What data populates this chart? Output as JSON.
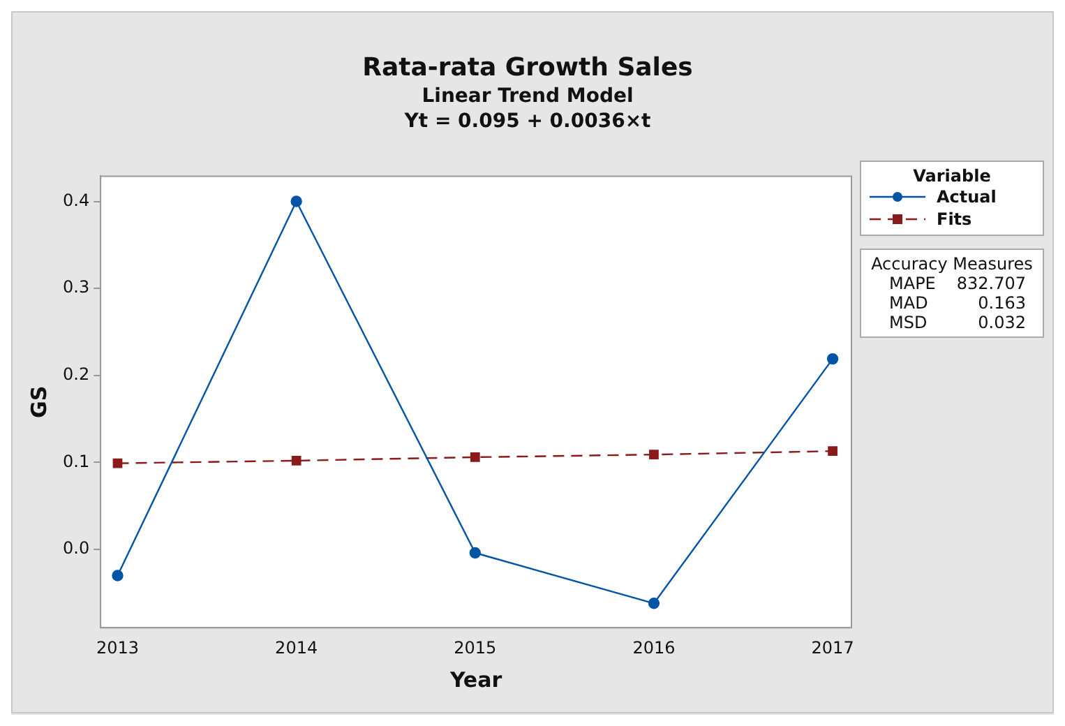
{
  "chart_data": {
    "type": "line",
    "title": "Rata-rata Growth Sales",
    "subtitle": "Linear Trend Model",
    "xlabel": "Year",
    "ylabel": "GS",
    "legend_title": "Variable",
    "x": [
      2013,
      2014,
      2015,
      2016,
      2017
    ],
    "series": [
      {
        "name": "Actual",
        "color": "#0054a6",
        "values": [
          -0.03,
          0.4,
          -0.004,
          -0.062,
          0.219
        ],
        "marker": "circle",
        "line_style": "solid"
      },
      {
        "name": "Fits",
        "color": "#8b1a1a",
        "values": [
          0.099,
          0.102,
          0.106,
          0.109,
          0.113
        ],
        "marker": "square",
        "line_style": "dashed"
      }
    ],
    "xlim": [
      2012.905,
      2017.105
    ],
    "xticks": [
      2013,
      2014,
      2015,
      2016,
      2017
    ],
    "ylim": [
      -0.09,
      0.429
    ],
    "yticks": [
      {
        "value": 0,
        "label": "0.0"
      },
      {
        "value": 0.1,
        "label": "0.1"
      },
      {
        "value": 0.2,
        "label": "0.2"
      },
      {
        "value": 0.3,
        "label": "0.3"
      },
      {
        "value": 0.4,
        "label": "0.4"
      }
    ],
    "grid": false,
    "legend": "right",
    "annotations": [
      "Yt = 0.095 + 0.0036×t",
      "Accuracy Measures",
      "MAPE 832.707",
      "MAD 0.163",
      "MSD 0.032"
    ]
  }
}
